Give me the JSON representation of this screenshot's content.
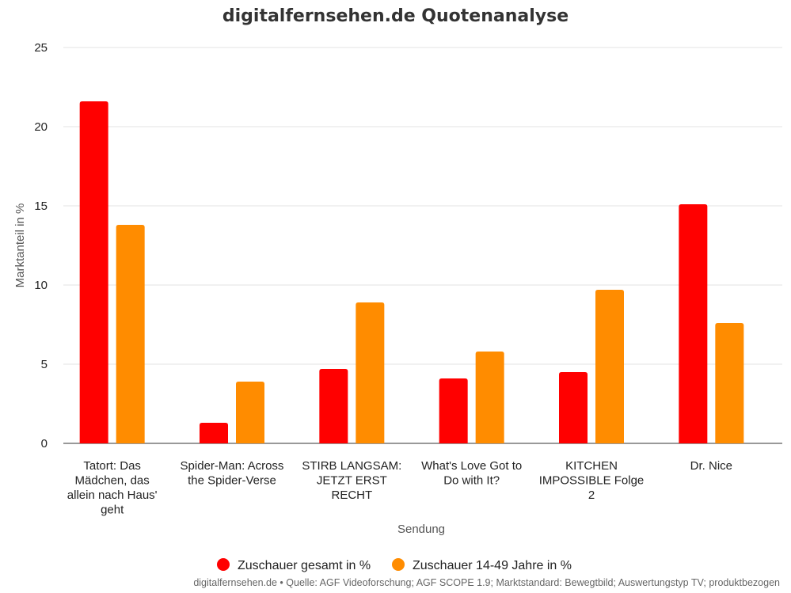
{
  "chart_data": {
    "type": "bar",
    "title": "digitalfernsehen.de Quotenanalyse",
    "xlabel": "Sendung",
    "ylabel": "Marktanteil in %",
    "ylim": [
      0,
      25
    ],
    "yticks": [
      0,
      5,
      10,
      15,
      20,
      25
    ],
    "grid": true,
    "legend_position": "bottom",
    "categories": [
      [
        "Tatort: Das",
        "Mädchen, das",
        "allein nach Haus'",
        "geht"
      ],
      [
        "Spider-Man: Across",
        "the Spider-Verse"
      ],
      [
        "STIRB LANGSAM:",
        "JETZT ERST",
        "RECHT"
      ],
      [
        "What's Love Got to",
        "Do with It?"
      ],
      [
        "KITCHEN",
        "IMPOSSIBLE Folge",
        "2"
      ],
      [
        "Dr. Nice"
      ]
    ],
    "series": [
      {
        "name": "Zuschauer gesamt in %",
        "color": "#ff0000",
        "values": [
          21.6,
          1.3,
          4.7,
          4.1,
          4.5,
          15.1
        ]
      },
      {
        "name": "Zuschauer 14-49 Jahre in %",
        "color": "#ff8c00",
        "values": [
          13.8,
          3.9,
          8.9,
          5.8,
          9.7,
          7.6
        ]
      }
    ]
  },
  "footer": "digitalfernsehen.de • Quelle: AGF Videoforschung; AGF SCOPE 1.9; Marktstandard: Bewegtbild; Auswertungstyp TV; produktbezogen"
}
